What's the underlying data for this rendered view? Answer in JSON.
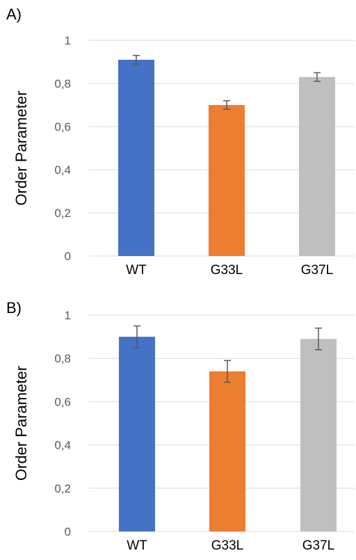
{
  "chart_data": [
    {
      "panel_label": "A)",
      "type": "bar",
      "categories": [
        "WT",
        "G33L",
        "G37L"
      ],
      "values": [
        0.91,
        0.7,
        0.83
      ],
      "errors": [
        0.02,
        0.02,
        0.02
      ],
      "colors": [
        "#4472c4",
        "#ed7d31",
        "#bfbfbf"
      ],
      "title": "",
      "xlabel": "",
      "ylabel": "Order Parameter",
      "ylim": [
        0,
        1
      ],
      "yticks": [
        "0",
        "0,2",
        "0,4",
        "0,6",
        "0,8",
        "1"
      ],
      "grid": true
    },
    {
      "panel_label": "B)",
      "type": "bar",
      "categories": [
        "WT",
        "G33L",
        "G37L"
      ],
      "values": [
        0.9,
        0.74,
        0.89
      ],
      "errors": [
        0.05,
        0.05,
        0.05
      ],
      "colors": [
        "#4472c4",
        "#ed7d31",
        "#bfbfbf"
      ],
      "title": "",
      "xlabel": "",
      "ylabel": "Order Parameter",
      "ylim": [
        0,
        1
      ],
      "yticks": [
        "0",
        "0,2",
        "0,4",
        "0,6",
        "0,8",
        "1"
      ],
      "grid": true
    }
  ]
}
